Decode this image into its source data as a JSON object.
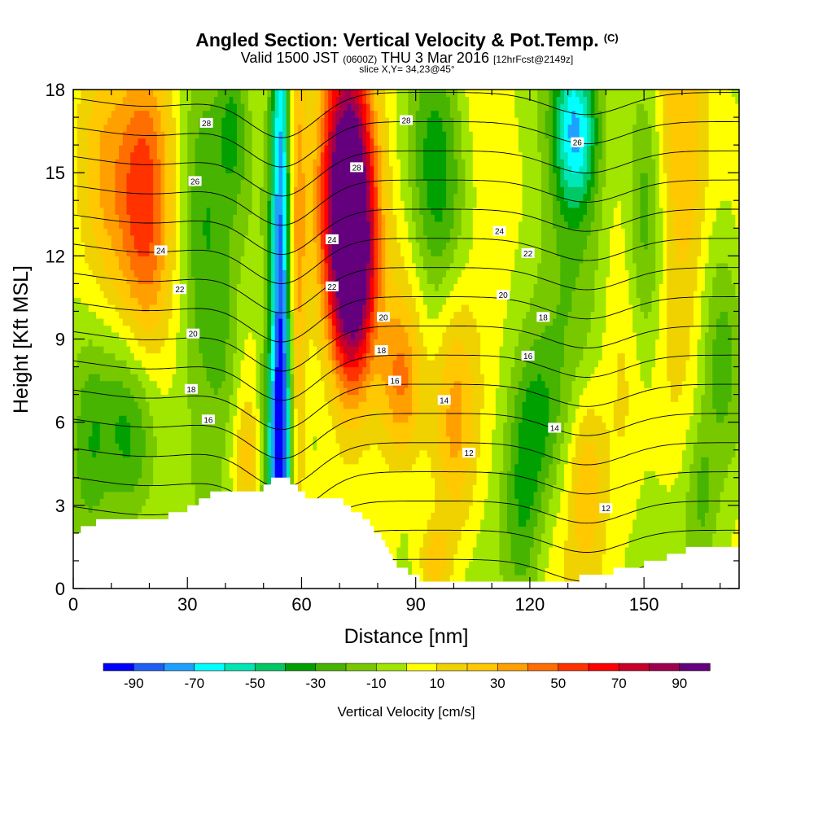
{
  "title": {
    "main": "Angled Section: Vertical Velocity & Pot.Temp.",
    "main_unit": "(C)",
    "valid_prefix": "Valid 1500 JST",
    "valid_utc": "(0600Z)",
    "valid_date": "THU 3 Mar 2016",
    "forecast": "[12hrFcst@2149z]",
    "slice": "slice X,Y= 34,23@45°"
  },
  "chart_data": {
    "type": "heatmap",
    "xlabel": "Distance [nm]",
    "ylabel": "Height [Kft MSL]",
    "xlim": [
      0,
      175
    ],
    "ylim": [
      0,
      18
    ],
    "x_ticks": [
      0,
      30,
      60,
      90,
      120,
      150
    ],
    "y_ticks": [
      0,
      3,
      6,
      9,
      12,
      15,
      18
    ],
    "colorbar": {
      "title": "Vertical Velocity [cm/s]",
      "range": [
        -100,
        100
      ],
      "step": 10,
      "tick_values": [
        -90,
        -70,
        -50,
        -30,
        -10,
        10,
        30,
        50,
        70,
        90
      ],
      "colors": [
        "#0000ff",
        "#1e5ef5",
        "#1ea0ff",
        "#00ffff",
        "#00e6b4",
        "#00c864",
        "#00a000",
        "#46b400",
        "#78c800",
        "#a0e600",
        "#ffff00",
        "#f0d200",
        "#ffc800",
        "#ffa000",
        "#ff6e00",
        "#ff3200",
        "#ff0000",
        "#c80028",
        "#a00050",
        "#64007d"
      ]
    },
    "terrain_kft": [
      [
        0,
        2.0
      ],
      [
        4,
        2.2
      ],
      [
        8,
        2.6
      ],
      [
        15,
        2.6
      ],
      [
        25,
        2.6
      ],
      [
        30,
        2.9
      ],
      [
        35,
        3.3
      ],
      [
        40,
        3.6
      ],
      [
        50,
        3.6
      ],
      [
        52,
        3.9
      ],
      [
        57,
        3.9
      ],
      [
        59,
        3.6
      ],
      [
        62,
        3.3
      ],
      [
        70,
        3.3
      ],
      [
        72,
        3.0
      ],
      [
        76,
        2.6
      ],
      [
        80,
        2.0
      ],
      [
        84,
        1.0
      ],
      [
        88,
        0.6
      ],
      [
        92,
        0.3
      ],
      [
        110,
        0.3
      ],
      [
        130,
        0.3
      ],
      [
        145,
        0.7
      ],
      [
        158,
        1.2
      ],
      [
        164,
        1.6
      ],
      [
        175,
        1.6
      ]
    ],
    "velocity_features": [
      {
        "x": 55,
        "z": 11,
        "sx": 2.2,
        "sz": 10,
        "w": -95
      },
      {
        "x": 53,
        "z": 5,
        "sx": 3,
        "sz": 3,
        "w": -40
      },
      {
        "x": 58,
        "z": 12,
        "sx": 2,
        "sz": 8,
        "w": 55
      },
      {
        "x": 72,
        "z": 14.5,
        "sx": 5,
        "sz": 4.5,
        "w": 105
      },
      {
        "x": 74,
        "z": 11,
        "sx": 4,
        "sz": 3,
        "w": 55
      },
      {
        "x": 19,
        "z": 14,
        "sx": 5,
        "sz": 4.5,
        "w": 50
      },
      {
        "x": 34,
        "z": 12,
        "sx": 4,
        "sz": 7,
        "w": -25
      },
      {
        "x": 42,
        "z": 17,
        "sx": 3,
        "sz": 2,
        "w": -30
      },
      {
        "x": 15,
        "z": 5.5,
        "sx": 5,
        "sz": 2.5,
        "w": -30
      },
      {
        "x": 40,
        "z": 8,
        "sx": 3,
        "sz": 3,
        "w": -20
      },
      {
        "x": 46,
        "z": 4.5,
        "sx": 3,
        "sz": 1.5,
        "w": 25
      },
      {
        "x": 4,
        "z": 5,
        "sx": 4,
        "sz": 3,
        "w": -25
      },
      {
        "x": 8,
        "z": 16,
        "sx": 5,
        "sz": 4,
        "w": 25
      },
      {
        "x": 95,
        "z": 15,
        "sx": 5,
        "sz": 5,
        "w": -35
      },
      {
        "x": 100,
        "z": 6,
        "sx": 4,
        "sz": 3.5,
        "w": 30
      },
      {
        "x": 90,
        "z": 11.5,
        "sx": 6,
        "sz": 2.5,
        "w": 15
      },
      {
        "x": 86,
        "z": 7.5,
        "sx": 4,
        "sz": 2,
        "w": 40
      },
      {
        "x": 118,
        "z": 2.5,
        "sx": 4,
        "sz": 3,
        "w": -30
      },
      {
        "x": 122,
        "z": 6,
        "sx": 4,
        "sz": 2,
        "w": -20
      },
      {
        "x": 132,
        "z": 16.5,
        "sx": 4,
        "sz": 2,
        "w": -60
      },
      {
        "x": 130,
        "z": 13,
        "sx": 7,
        "sz": 4,
        "w": -25
      },
      {
        "x": 108,
        "z": 15,
        "sx": 5,
        "sz": 4,
        "w": 10
      },
      {
        "x": 135,
        "z": 4,
        "sx": 3.5,
        "sz": 2.5,
        "w": 30
      },
      {
        "x": 145,
        "z": 10,
        "sx": 4,
        "sz": 5,
        "w": 15
      },
      {
        "x": 150,
        "z": 13,
        "sx": 3.5,
        "sz": 5,
        "w": -25
      },
      {
        "x": 160,
        "z": 15,
        "sx": 5,
        "sz": 4,
        "w": 35
      },
      {
        "x": 170,
        "z": 8.5,
        "sx": 4,
        "sz": 3,
        "w": -25
      },
      {
        "x": 165,
        "z": 3.5,
        "sx": 3,
        "sz": 2,
        "w": -20
      },
      {
        "x": 95,
        "z": 1,
        "sx": 3,
        "sz": 1,
        "w": 30
      }
    ],
    "theta_levels_c": [
      12,
      13,
      14,
      15,
      16,
      17,
      18,
      19,
      20,
      21,
      22,
      23,
      24,
      25,
      26,
      27,
      28
    ],
    "theta_profile": {
      "base_c": 11,
      "lapse_per_kft": 0.95
    },
    "theta_wave": [
      {
        "x": 55,
        "sx": 9,
        "dz_kft": -1.6
      },
      {
        "x": 135,
        "sx": 10,
        "dz_kft": -0.8
      },
      {
        "x": 20,
        "sx": 15,
        "dz_kft": -0.5
      }
    ],
    "contour_labels": [
      {
        "text": "28",
        "x": 35,
        "y": 16.8
      },
      {
        "text": "26",
        "x": 32,
        "y": 14.7
      },
      {
        "text": "24",
        "x": 23,
        "y": 12.2
      },
      {
        "text": "22",
        "x": 28,
        "y": 10.8
      },
      {
        "text": "20",
        "x": 31.5,
        "y": 9.2
      },
      {
        "text": "18",
        "x": 31,
        "y": 7.2
      },
      {
        "text": "16",
        "x": 35.5,
        "y": 6.1
      },
      {
        "text": "28",
        "x": 87.5,
        "y": 16.9
      },
      {
        "text": "28",
        "x": 74.5,
        "y": 15.2
      },
      {
        "text": "26",
        "x": 132.5,
        "y": 16.1
      },
      {
        "text": "24",
        "x": 68,
        "y": 12.6
      },
      {
        "text": "24",
        "x": 112,
        "y": 12.9
      },
      {
        "text": "22",
        "x": 68,
        "y": 10.9
      },
      {
        "text": "22",
        "x": 119.5,
        "y": 12.1
      },
      {
        "text": "20",
        "x": 81.5,
        "y": 9.8
      },
      {
        "text": "20",
        "x": 113,
        "y": 10.6
      },
      {
        "text": "18",
        "x": 81,
        "y": 8.6
      },
      {
        "text": "18",
        "x": 123.5,
        "y": 9.8
      },
      {
        "text": "16",
        "x": 84.5,
        "y": 7.5
      },
      {
        "text": "16",
        "x": 119.5,
        "y": 8.4
      },
      {
        "text": "14",
        "x": 97.5,
        "y": 6.8
      },
      {
        "text": "14",
        "x": 126.5,
        "y": 5.8
      },
      {
        "text": "12",
        "x": 104,
        "y": 4.9
      },
      {
        "text": "12",
        "x": 140,
        "y": 2.9
      }
    ]
  }
}
